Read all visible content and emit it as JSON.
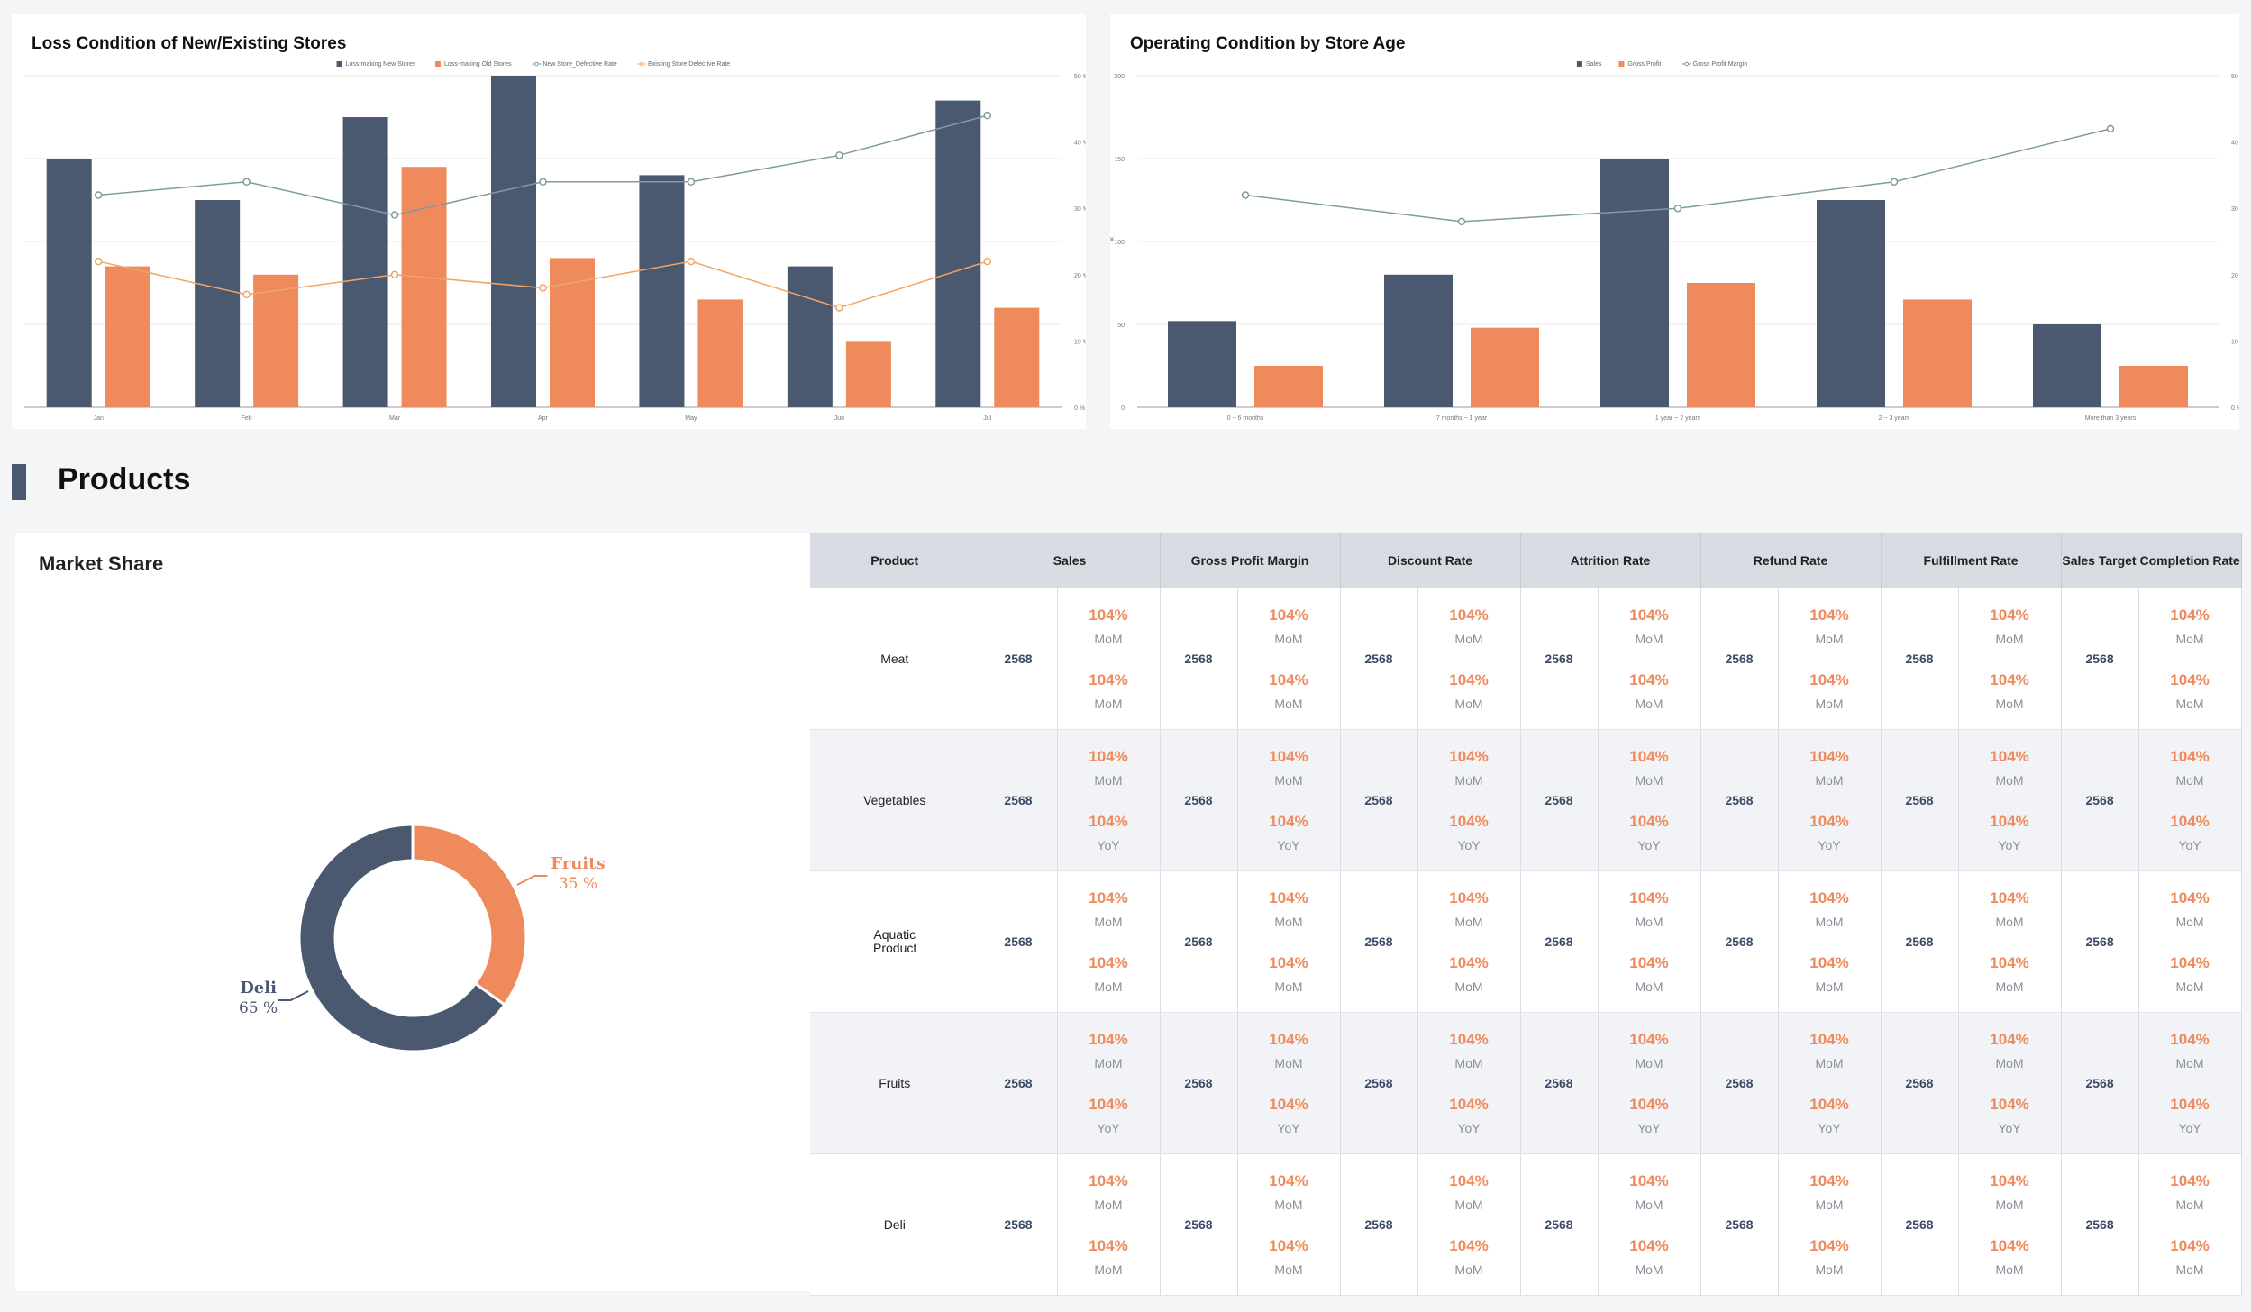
{
  "charts": {
    "loss": {
      "title": "Loss Condition of New/Existing Stores",
      "legend": [
        "Loss-making New Stores",
        "Loss-making Old Stores",
        "New Store_Defective Rate",
        "Existing Store Defective Rate"
      ],
      "colors": [
        "#4a5870",
        "#ee8a5c",
        "#7f9c9c",
        "#f0a565"
      ]
    },
    "age": {
      "title": "Operating Condition by Store Age",
      "legend": [
        "Sales",
        "Gross Profit",
        "Gross Profit Margin"
      ],
      "colors": [
        "#4a5870",
        "#ee8a5c",
        "#7f9c9c"
      ],
      "ylabel": "¥"
    }
  },
  "chart_data": [
    {
      "type": "bar",
      "title": "Loss Condition of New/Existing Stores",
      "categories": [
        "Jan",
        "Feb",
        "Mar",
        "Apr",
        "May",
        "Jun",
        "Jul"
      ],
      "ylim": [
        0,
        200
      ],
      "yticks": [
        "0",
        "50",
        "100",
        "150",
        "200"
      ],
      "y2lim": [
        0,
        50
      ],
      "y2ticks": [
        "0 %",
        "10 %",
        "20 %",
        "30 %",
        "40 %",
        "50 %"
      ],
      "series": [
        {
          "name": "Loss-making New Stores",
          "kind": "bar",
          "values": [
            150,
            125,
            175,
            200,
            140,
            85,
            185
          ]
        },
        {
          "name": "Loss-making Old Stores",
          "kind": "bar",
          "values": [
            85,
            80,
            145,
            90,
            65,
            40,
            60
          ]
        },
        {
          "name": "New Store_Defective Rate",
          "kind": "line",
          "axis": "right",
          "values": [
            32,
            34,
            29,
            34,
            34,
            38,
            44
          ]
        },
        {
          "name": "Existing Store Defective Rate",
          "kind": "line",
          "axis": "right",
          "values": [
            22,
            17,
            20,
            18,
            22,
            15,
            22
          ]
        }
      ],
      "legend_position": "top-center",
      "grid": true
    },
    {
      "type": "bar",
      "title": "Operating Condition by Store Age",
      "categories": [
        "0 ~ 6 months",
        "7 months ~ 1 year",
        "1 year ~ 2 years",
        "2 ~ 3 years",
        "More than 3 years"
      ],
      "ylim": [
        0,
        200
      ],
      "yticks": [
        "0",
        "50",
        "100",
        "150",
        "200"
      ],
      "y2lim": [
        0,
        50
      ],
      "y2ticks": [
        "0 %",
        "10 %",
        "20 %",
        "30 %",
        "40 %",
        "50 %"
      ],
      "series": [
        {
          "name": "Sales",
          "kind": "bar",
          "values": [
            52,
            80,
            150,
            125,
            50
          ]
        },
        {
          "name": "Gross Profit",
          "kind": "bar",
          "values": [
            25,
            48,
            75,
            65,
            25
          ]
        },
        {
          "name": "Gross Profit Margin",
          "kind": "line",
          "axis": "right",
          "values": [
            32,
            28,
            30,
            34,
            42
          ]
        }
      ],
      "legend_position": "top-center",
      "grid": true
    },
    {
      "type": "pie",
      "title": "Market Share",
      "categories": [
        "Fruits",
        "Deli"
      ],
      "values": [
        35,
        65
      ],
      "colors": [
        "#ee8a5c",
        "#4a5870"
      ]
    }
  ],
  "section": {
    "title": "Products"
  },
  "share": {
    "title": "Market Share",
    "slices": [
      {
        "label": "Fruits",
        "pct": "35 %"
      },
      {
        "label": "Deli",
        "pct": "65 %"
      }
    ]
  },
  "table": {
    "headers": [
      "Product",
      "Sales",
      "Gross Profit Margin",
      "Discount Rate",
      "Attrition Rate",
      "Refund Rate",
      "Fulfillment Rate",
      "Sales Target Completion Rate"
    ],
    "rows": [
      {
        "product": "Meat",
        "value": "2568",
        "pct1": "104%",
        "lbl1": "MoM",
        "pct2": "104%",
        "lbl2": "MoM"
      },
      {
        "product": "Vegetables",
        "value": "2568",
        "pct1": "104%",
        "lbl1": "MoM",
        "pct2": "104%",
        "lbl2": "YoY"
      },
      {
        "product": "Aquatic Product",
        "value": "2568",
        "pct1": "104%",
        "lbl1": "MoM",
        "pct2": "104%",
        "lbl2": "MoM"
      },
      {
        "product": "Fruits",
        "value": "2568",
        "pct1": "104%",
        "lbl1": "MoM",
        "pct2": "104%",
        "lbl2": "YoY"
      },
      {
        "product": "Deli",
        "value": "2568",
        "pct1": "104%",
        "lbl1": "MoM",
        "pct2": "104%",
        "lbl2": "MoM"
      }
    ]
  }
}
